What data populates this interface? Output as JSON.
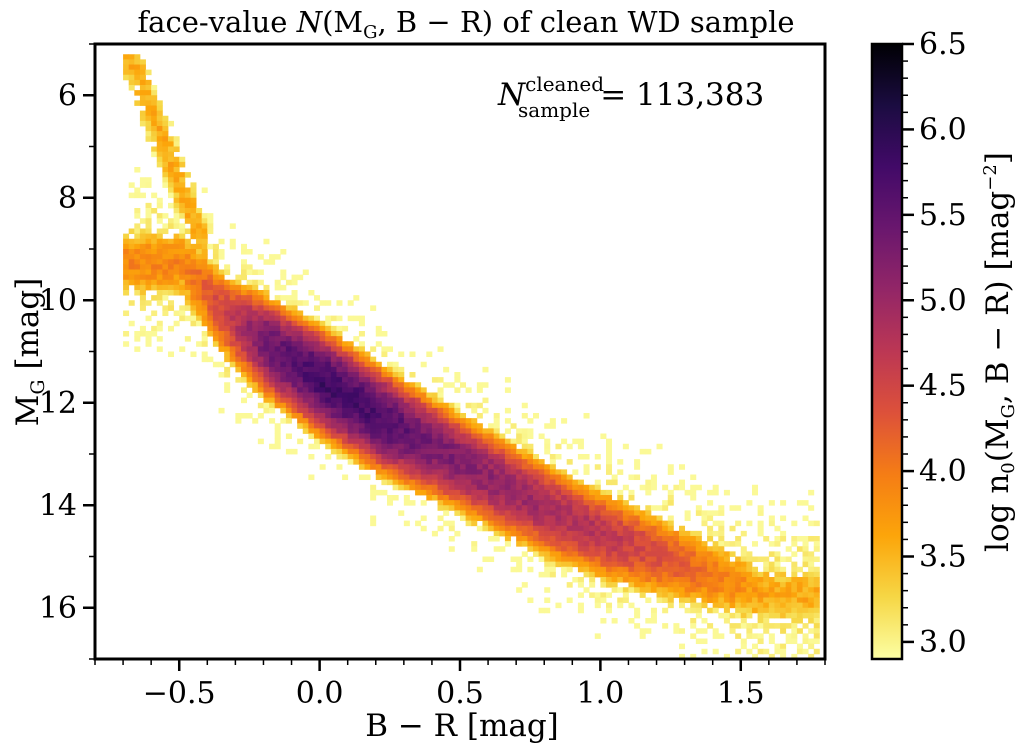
{
  "chart_data": {
    "type": "heatmap",
    "title": {
      "prefix": "face-value ",
      "n": "N",
      "args": "(M",
      "sub": "G",
      "rest": ", B − R) of clean WD sample"
    },
    "xlabel": "B − R [mag]",
    "ylabel": {
      "main": "M",
      "sub": "G",
      "unit": " [mag]"
    },
    "xlim": [
      -0.8,
      1.8
    ],
    "ylim": [
      17.0,
      5.0
    ],
    "y_inverted": true,
    "xticks": [
      "−0.5",
      "0.0",
      "0.5",
      "1.0",
      "1.5"
    ],
    "xtick_values": [
      -0.5,
      0.0,
      0.5,
      1.0,
      1.5
    ],
    "yticks": [
      "6",
      "8",
      "10",
      "12",
      "14",
      "16"
    ],
    "ytick_values": [
      6,
      8,
      10,
      12,
      14,
      16
    ],
    "annotation": {
      "n": "N",
      "sup": "cleaned",
      "sub": "sample",
      "value": "= 113,383"
    },
    "colorbar": {
      "label": "log n0(MG, B − R) [mag−2]",
      "label_parts": {
        "pre": "log n",
        "sub0": "0",
        "mid": "(M",
        "subG": "G",
        "post": ", B − R) [mag",
        "sup": "−2",
        "end": "]"
      },
      "range": [
        2.9,
        6.5
      ],
      "ticks": [
        "3.0",
        "3.5",
        "4.0",
        "4.5",
        "5.0",
        "5.5",
        "6.0",
        "6.5"
      ],
      "tick_values": [
        3.0,
        3.5,
        4.0,
        4.5,
        5.0,
        5.5,
        6.0,
        6.5
      ],
      "colormap": "inferno_r",
      "stops": [
        "#fcffa4",
        "#f6d746",
        "#fca50a",
        "#f57d15",
        "#dd513a",
        "#bc3754",
        "#932667",
        "#6a176e",
        "#420a68",
        "#1b0c41",
        "#000004"
      ]
    },
    "ridge": [
      {
        "x": -0.5,
        "y": 9.2,
        "peak": 3.9
      },
      {
        "x": -0.35,
        "y": 10.2,
        "peak": 4.5
      },
      {
        "x": -0.2,
        "y": 10.8,
        "peak": 5.4
      },
      {
        "x": 0.0,
        "y": 11.5,
        "peak": 5.8
      },
      {
        "x": 0.2,
        "y": 12.2,
        "peak": 5.7
      },
      {
        "x": 0.4,
        "y": 12.8,
        "peak": 5.3
      },
      {
        "x": 0.6,
        "y": 13.4,
        "peak": 5.1
      },
      {
        "x": 0.8,
        "y": 14.0,
        "peak": 4.9
      },
      {
        "x": 1.0,
        "y": 14.5,
        "peak": 4.7
      },
      {
        "x": 1.2,
        "y": 14.9,
        "peak": 4.4
      },
      {
        "x": 1.4,
        "y": 15.3,
        "peak": 4.0
      },
      {
        "x": 1.6,
        "y": 15.7,
        "peak": 3.6
      }
    ]
  }
}
